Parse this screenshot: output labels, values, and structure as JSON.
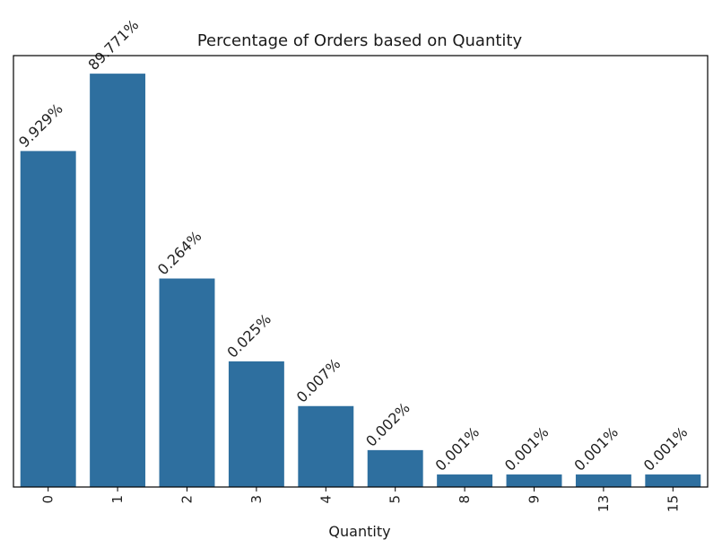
{
  "chart_data": {
    "type": "bar",
    "title": "Percentage of Orders based on Quantity",
    "xlabel": "Quantity",
    "ylabel": "",
    "y_scale": "log",
    "ylim": [
      0.0007,
      150
    ],
    "categories": [
      "0",
      "1",
      "2",
      "3",
      "4",
      "5",
      "8",
      "9",
      "13",
      "15"
    ],
    "values": [
      9.929,
      89.771,
      0.264,
      0.025,
      0.007,
      0.002,
      0.001,
      0.001,
      0.001,
      0.001
    ],
    "data_labels": [
      "9.929%",
      "89.771%",
      "0.264%",
      "0.025%",
      "0.007%",
      "0.002%",
      "0.001%",
      "0.001%",
      "0.001%",
      "0.001%"
    ],
    "bar_color": "#2e6f9f",
    "grid": false,
    "y_ticks_shown": false
  }
}
